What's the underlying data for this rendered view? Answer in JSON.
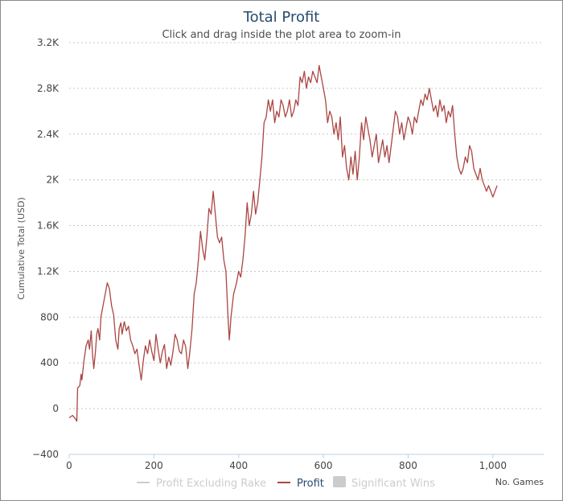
{
  "chart_data": {
    "type": "line",
    "title": "Total Profit",
    "subtitle": "Click and drag inside the plot area to zoom-in",
    "xlabel": "No. Games",
    "ylabel": "Cumulative Total (USD)",
    "xlim": [
      0,
      1120
    ],
    "ylim": [
      -400,
      3200
    ],
    "x_ticks": [
      0,
      200,
      400,
      600,
      800,
      1000
    ],
    "x_tick_labels": [
      "0",
      "200",
      "400",
      "600",
      "800",
      "1,000"
    ],
    "y_ticks": [
      -400,
      0,
      400,
      800,
      1200,
      1600,
      2000,
      2400,
      2800,
      3200
    ],
    "y_tick_labels": [
      "−400",
      "0",
      "400",
      "800",
      "1.2K",
      "1.6K",
      "2K",
      "2.4K",
      "2.8K",
      "3.2K"
    ],
    "grid": true,
    "legend": [
      {
        "name": "Profit Excluding Rake",
        "visible": false,
        "color": "#cccccc"
      },
      {
        "name": "Profit",
        "visible": true,
        "color": "#aa4643"
      },
      {
        "name": "Significant Wins",
        "visible": false,
        "color": "#cccccc"
      }
    ],
    "series": [
      {
        "name": "Profit",
        "color": "#aa4643",
        "points": [
          [
            0,
            -80
          ],
          [
            8,
            -60
          ],
          [
            15,
            -90
          ],
          [
            18,
            -110
          ],
          [
            20,
            180
          ],
          [
            25,
            200
          ],
          [
            28,
            300
          ],
          [
            30,
            250
          ],
          [
            35,
            420
          ],
          [
            40,
            550
          ],
          [
            45,
            600
          ],
          [
            48,
            520
          ],
          [
            52,
            680
          ],
          [
            55,
            480
          ],
          [
            58,
            350
          ],
          [
            62,
            500
          ],
          [
            65,
            650
          ],
          [
            68,
            700
          ],
          [
            72,
            600
          ],
          [
            75,
            800
          ],
          [
            80,
            900
          ],
          [
            85,
            1000
          ],
          [
            90,
            1100
          ],
          [
            95,
            1050
          ],
          [
            100,
            900
          ],
          [
            105,
            820
          ],
          [
            110,
            600
          ],
          [
            115,
            520
          ],
          [
            118,
            700
          ],
          [
            122,
            750
          ],
          [
            125,
            650
          ],
          [
            130,
            760
          ],
          [
            135,
            680
          ],
          [
            140,
            720
          ],
          [
            145,
            600
          ],
          [
            150,
            550
          ],
          [
            155,
            480
          ],
          [
            160,
            520
          ],
          [
            165,
            380
          ],
          [
            170,
            250
          ],
          [
            175,
            420
          ],
          [
            180,
            550
          ],
          [
            185,
            480
          ],
          [
            190,
            600
          ],
          [
            195,
            500
          ],
          [
            200,
            420
          ],
          [
            205,
            650
          ],
          [
            210,
            520
          ],
          [
            215,
            400
          ],
          [
            220,
            500
          ],
          [
            225,
            560
          ],
          [
            230,
            350
          ],
          [
            235,
            450
          ],
          [
            240,
            380
          ],
          [
            245,
            500
          ],
          [
            250,
            650
          ],
          [
            255,
            600
          ],
          [
            260,
            500
          ],
          [
            265,
            480
          ],
          [
            270,
            600
          ],
          [
            275,
            540
          ],
          [
            280,
            350
          ],
          [
            285,
            500
          ],
          [
            290,
            700
          ],
          [
            295,
            1000
          ],
          [
            300,
            1100
          ],
          [
            305,
            1300
          ],
          [
            310,
            1550
          ],
          [
            315,
            1400
          ],
          [
            320,
            1300
          ],
          [
            325,
            1500
          ],
          [
            330,
            1750
          ],
          [
            335,
            1700
          ],
          [
            340,
            1900
          ],
          [
            345,
            1700
          ],
          [
            350,
            1500
          ],
          [
            355,
            1450
          ],
          [
            360,
            1500
          ],
          [
            365,
            1300
          ],
          [
            370,
            1200
          ],
          [
            375,
            800
          ],
          [
            378,
            600
          ],
          [
            382,
            800
          ],
          [
            388,
            1000
          ],
          [
            395,
            1100
          ],
          [
            400,
            1200
          ],
          [
            405,
            1150
          ],
          [
            410,
            1300
          ],
          [
            415,
            1500
          ],
          [
            420,
            1800
          ],
          [
            425,
            1600
          ],
          [
            430,
            1700
          ],
          [
            435,
            1900
          ],
          [
            440,
            1700
          ],
          [
            445,
            1800
          ],
          [
            450,
            2000
          ],
          [
            455,
            2200
          ],
          [
            460,
            2500
          ],
          [
            465,
            2550
          ],
          [
            470,
            2700
          ],
          [
            475,
            2600
          ],
          [
            480,
            2700
          ],
          [
            485,
            2500
          ],
          [
            490,
            2600
          ],
          [
            495,
            2550
          ],
          [
            500,
            2700
          ],
          [
            505,
            2650
          ],
          [
            510,
            2550
          ],
          [
            515,
            2600
          ],
          [
            520,
            2700
          ],
          [
            525,
            2550
          ],
          [
            530,
            2600
          ],
          [
            535,
            2700
          ],
          [
            540,
            2650
          ],
          [
            545,
            2900
          ],
          [
            550,
            2850
          ],
          [
            555,
            2950
          ],
          [
            560,
            2800
          ],
          [
            565,
            2900
          ],
          [
            570,
            2850
          ],
          [
            575,
            2950
          ],
          [
            580,
            2900
          ],
          [
            585,
            2850
          ],
          [
            590,
            3000
          ],
          [
            595,
            2900
          ],
          [
            600,
            2800
          ],
          [
            605,
            2700
          ],
          [
            610,
            2500
          ],
          [
            615,
            2600
          ],
          [
            620,
            2550
          ],
          [
            625,
            2400
          ],
          [
            630,
            2500
          ],
          [
            635,
            2350
          ],
          [
            640,
            2550
          ],
          [
            645,
            2200
          ],
          [
            650,
            2300
          ],
          [
            655,
            2100
          ],
          [
            660,
            2000
          ],
          [
            665,
            2200
          ],
          [
            670,
            2050
          ],
          [
            675,
            2250
          ],
          [
            680,
            2000
          ],
          [
            685,
            2200
          ],
          [
            690,
            2500
          ],
          [
            695,
            2350
          ],
          [
            700,
            2550
          ],
          [
            705,
            2450
          ],
          [
            710,
            2350
          ],
          [
            715,
            2200
          ],
          [
            720,
            2300
          ],
          [
            725,
            2400
          ],
          [
            730,
            2150
          ],
          [
            735,
            2250
          ],
          [
            740,
            2350
          ],
          [
            745,
            2200
          ],
          [
            750,
            2300
          ],
          [
            755,
            2150
          ],
          [
            760,
            2300
          ],
          [
            765,
            2450
          ],
          [
            770,
            2600
          ],
          [
            775,
            2550
          ],
          [
            780,
            2400
          ],
          [
            785,
            2500
          ],
          [
            790,
            2350
          ],
          [
            795,
            2450
          ],
          [
            800,
            2550
          ],
          [
            805,
            2500
          ],
          [
            810,
            2400
          ],
          [
            815,
            2550
          ],
          [
            820,
            2500
          ],
          [
            825,
            2600
          ],
          [
            830,
            2700
          ],
          [
            835,
            2650
          ],
          [
            840,
            2750
          ],
          [
            845,
            2700
          ],
          [
            850,
            2800
          ],
          [
            855,
            2700
          ],
          [
            860,
            2600
          ],
          [
            865,
            2650
          ],
          [
            870,
            2550
          ],
          [
            875,
            2700
          ],
          [
            880,
            2600
          ],
          [
            885,
            2650
          ],
          [
            890,
            2500
          ],
          [
            895,
            2600
          ],
          [
            900,
            2550
          ],
          [
            905,
            2650
          ],
          [
            910,
            2400
          ],
          [
            915,
            2200
          ],
          [
            920,
            2100
          ],
          [
            925,
            2050
          ],
          [
            930,
            2100
          ],
          [
            935,
            2200
          ],
          [
            940,
            2150
          ],
          [
            945,
            2300
          ],
          [
            950,
            2250
          ],
          [
            955,
            2100
          ],
          [
            960,
            2050
          ],
          [
            965,
            2000
          ],
          [
            970,
            2100
          ],
          [
            975,
            2000
          ],
          [
            980,
            1950
          ],
          [
            985,
            1900
          ],
          [
            990,
            1950
          ],
          [
            995,
            1900
          ],
          [
            1000,
            1850
          ],
          [
            1005,
            1900
          ],
          [
            1010,
            1950
          ]
        ]
      }
    ]
  }
}
